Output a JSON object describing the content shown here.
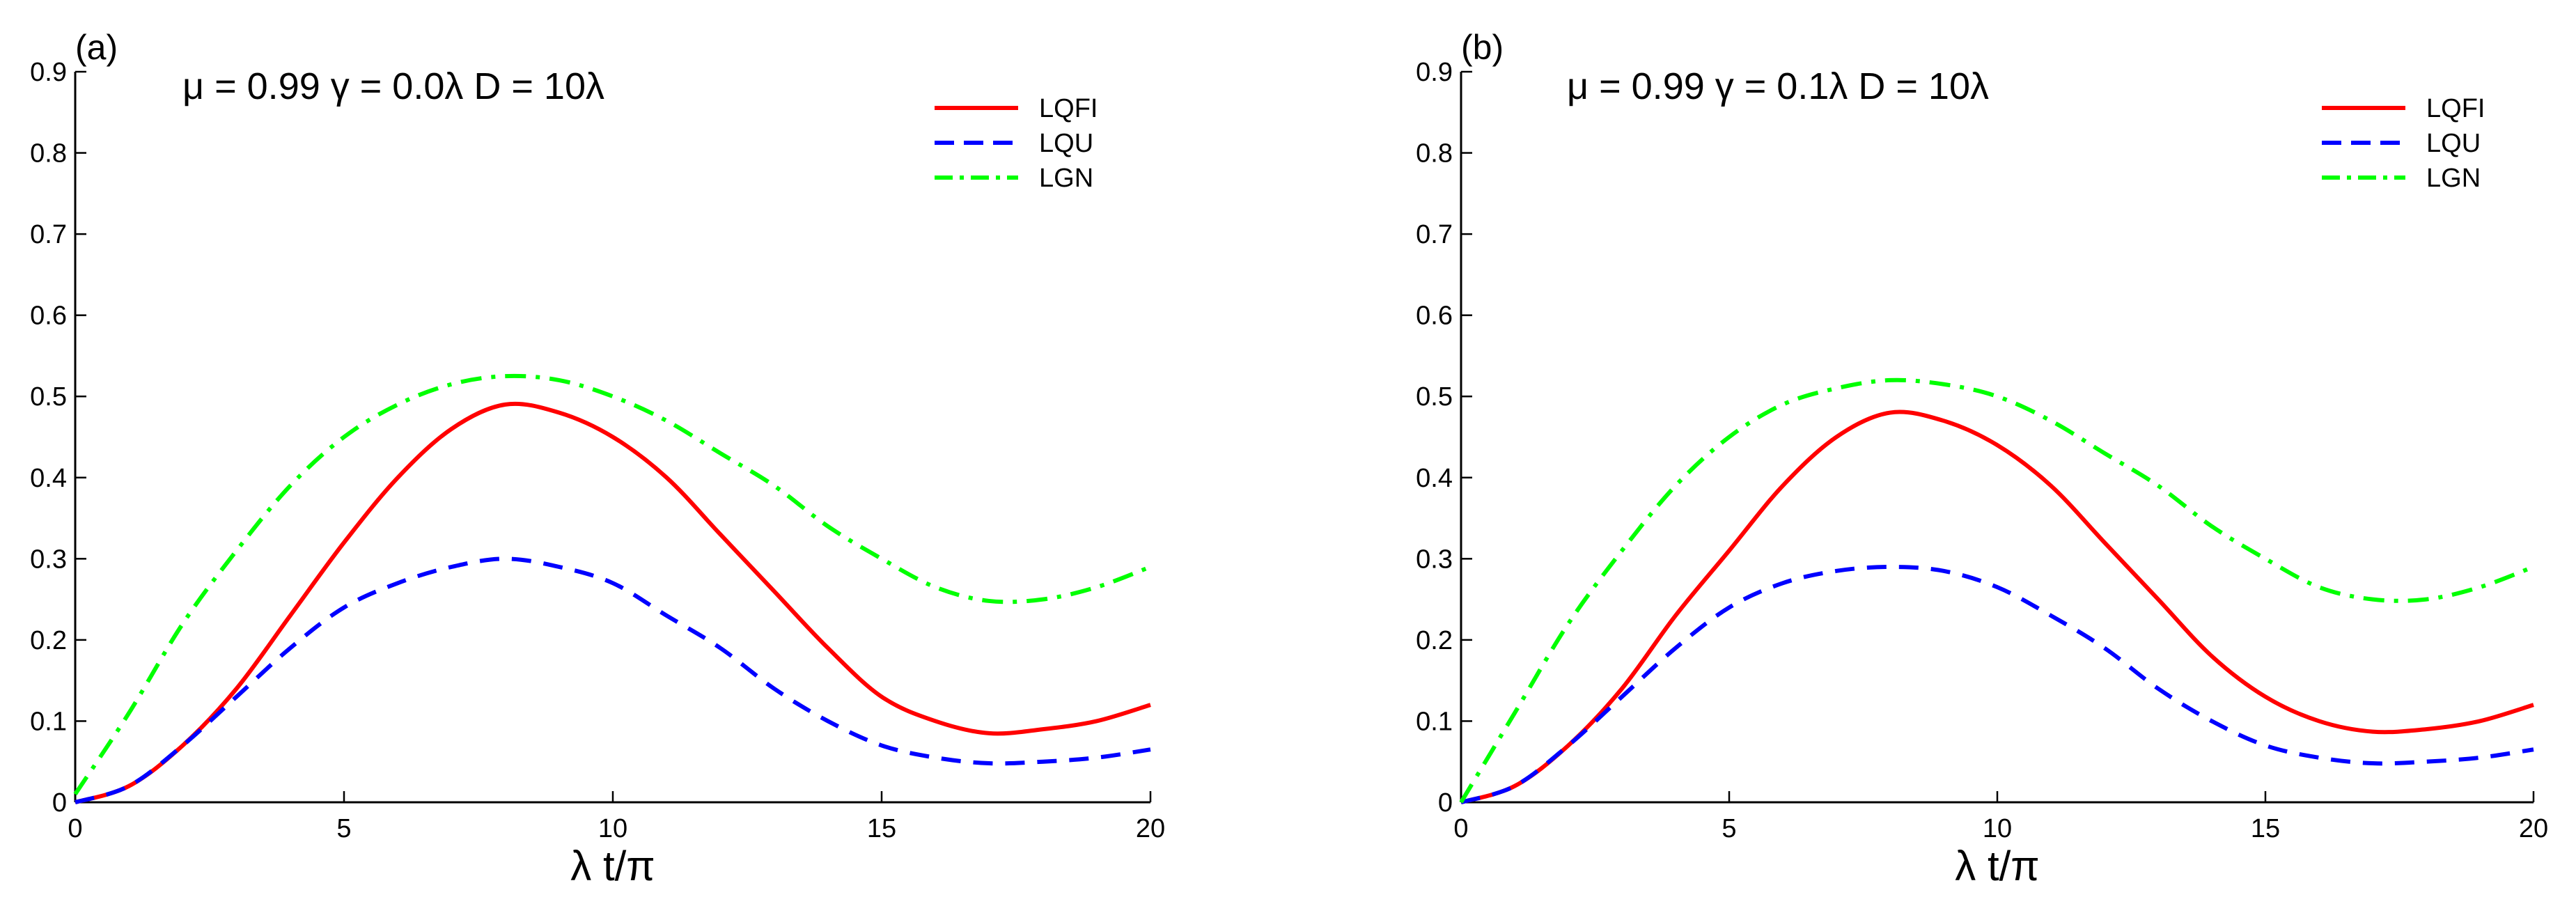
{
  "chart_data": [
    {
      "type": "line",
      "panel_label": "(a)",
      "title": "μ = 0.99  γ = 0.0λ  D = 10λ",
      "xlabel": "λ t/π",
      "ylabel": "",
      "xlim": [
        0,
        20
      ],
      "ylim": [
        0,
        0.9
      ],
      "xticks": [
        "0",
        "5",
        "10",
        "15",
        "20"
      ],
      "yticks": [
        "0",
        "0.1",
        "0.2",
        "0.3",
        "0.4",
        "0.5",
        "0.6",
        "0.7",
        "0.8",
        "0.9"
      ],
      "legend_position": "top-right",
      "grid": false,
      "series": [
        {
          "name": "LQFI",
          "color": "#ff0000",
          "style": "solid",
          "x": [
            0,
            1,
            2,
            3,
            4,
            5,
            6,
            7,
            8,
            9,
            10,
            11,
            12,
            13,
            14,
            15,
            16,
            17,
            18,
            19,
            20
          ],
          "y": [
            0,
            0.02,
            0.07,
            0.14,
            0.23,
            0.32,
            0.4,
            0.46,
            0.49,
            0.48,
            0.45,
            0.4,
            0.33,
            0.26,
            0.19,
            0.13,
            0.1,
            0.085,
            0.09,
            0.1,
            0.12
          ]
        },
        {
          "name": "LQU",
          "color": "#0000ff",
          "style": "dashed",
          "x": [
            0,
            1,
            2,
            3,
            4,
            5,
            6,
            7,
            8,
            9,
            10,
            11,
            12,
            13,
            14,
            15,
            16,
            17,
            18,
            19,
            20
          ],
          "y": [
            0,
            0.02,
            0.07,
            0.13,
            0.19,
            0.24,
            0.27,
            0.29,
            0.3,
            0.29,
            0.27,
            0.23,
            0.19,
            0.14,
            0.1,
            0.07,
            0.055,
            0.048,
            0.05,
            0.055,
            0.065
          ]
        },
        {
          "name": "LGN",
          "color": "#00ff00",
          "style": "dashdot",
          "x": [
            0,
            1,
            2,
            3,
            4,
            5,
            6,
            7,
            8,
            9,
            10,
            11,
            12,
            13,
            14,
            15,
            16,
            17,
            18,
            19,
            20
          ],
          "y": [
            0.01,
            0.11,
            0.22,
            0.31,
            0.39,
            0.45,
            0.49,
            0.515,
            0.525,
            0.52,
            0.5,
            0.47,
            0.43,
            0.39,
            0.34,
            0.3,
            0.265,
            0.248,
            0.25,
            0.265,
            0.29
          ]
        }
      ]
    },
    {
      "type": "line",
      "panel_label": "(b)",
      "title": "μ = 0.99  γ = 0.1λ  D = 10λ",
      "xlabel": "λ t/π",
      "ylabel": "",
      "xlim": [
        0,
        20
      ],
      "ylim": [
        0,
        0.9
      ],
      "xticks": [
        "0",
        "5",
        "10",
        "15",
        "20"
      ],
      "yticks": [
        "0",
        "0.1",
        "0.2",
        "0.3",
        "0.4",
        "0.5",
        "0.6",
        "0.7",
        "0.8",
        "0.9"
      ],
      "legend_position": "top-right",
      "grid": false,
      "series": [
        {
          "name": "LQFI",
          "color": "#ff0000",
          "style": "solid",
          "x": [
            0,
            1,
            2,
            3,
            4,
            5,
            6,
            7,
            8,
            9,
            10,
            11,
            12,
            13,
            14,
            15,
            16,
            17,
            18,
            19,
            20
          ],
          "y": [
            0,
            0.02,
            0.07,
            0.14,
            0.23,
            0.31,
            0.39,
            0.45,
            0.48,
            0.47,
            0.44,
            0.39,
            0.32,
            0.25,
            0.18,
            0.13,
            0.1,
            0.087,
            0.09,
            0.1,
            0.12
          ]
        },
        {
          "name": "LQU",
          "color": "#0000ff",
          "style": "dashed",
          "x": [
            0,
            1,
            2,
            3,
            4,
            5,
            6,
            7,
            8,
            9,
            10,
            11,
            12,
            13,
            14,
            15,
            16,
            17,
            18,
            19,
            20
          ],
          "y": [
            0,
            0.02,
            0.07,
            0.13,
            0.19,
            0.24,
            0.27,
            0.285,
            0.29,
            0.285,
            0.265,
            0.23,
            0.19,
            0.14,
            0.1,
            0.07,
            0.055,
            0.048,
            0.05,
            0.055,
            0.065
          ]
        },
        {
          "name": "LGN",
          "color": "#00ff00",
          "style": "dashdot",
          "x": [
            0,
            1,
            2,
            3,
            4,
            5,
            6,
            7,
            8,
            9,
            10,
            11,
            12,
            13,
            14,
            15,
            16,
            17,
            18,
            19,
            20
          ],
          "y": [
            0,
            0.11,
            0.22,
            0.31,
            0.39,
            0.45,
            0.49,
            0.51,
            0.52,
            0.515,
            0.5,
            0.47,
            0.43,
            0.39,
            0.34,
            0.3,
            0.265,
            0.25,
            0.25,
            0.265,
            0.29
          ]
        }
      ]
    }
  ]
}
